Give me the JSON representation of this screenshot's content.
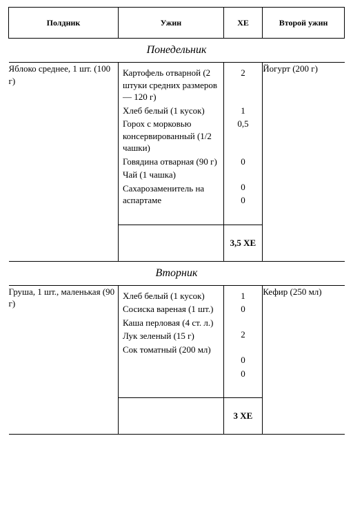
{
  "headers": {
    "col1": "Полдник",
    "col2": "Ужин",
    "col3": "ХЕ",
    "col4": "Второй ужин"
  },
  "days": [
    {
      "name": "Понедельник",
      "snack": "Яблоко среднее, 1 шт.  (100 г)",
      "late": "Йогурт (200 г)",
      "dinner": [
        {
          "food": "Картофель отварной (2 штуки средних размеров — 120 г)",
          "xe": "2"
        },
        {
          "food": "Хлеб белый (1 кусок)",
          "xe": "1"
        },
        {
          "food": "Горох  с морковью консервированный (1/2 чашки)",
          "xe": "0,5"
        },
        {
          "food": "Говядина отварная (90 г)",
          "xe": "0"
        },
        {
          "food": "Чай (1 чашка)",
          "xe": "0"
        },
        {
          "food": "Сахарозаменитель на аспартаме",
          "xe": "0"
        }
      ],
      "total": "3,5 ХЕ"
    },
    {
      "name": "Вторник",
      "snack": "Груша, 1 шт., маленькая (90 г)",
      "late": "Кефир (250 мл)",
      "dinner": [
        {
          "food": "Хлеб белый (1 кусок)",
          "xe": "1"
        },
        {
          "food": "Сосиска вареная (1 шт.)",
          "xe": "0"
        },
        {
          "food": "Каша перловая (4 ст. л.)",
          "xe": "2"
        },
        {
          "food": "Лук зеленый (15 г)",
          "xe": "0"
        },
        {
          "food": "Сок томатный (200 мл)",
          "xe": "0"
        }
      ],
      "total": "3 ХЕ"
    }
  ]
}
